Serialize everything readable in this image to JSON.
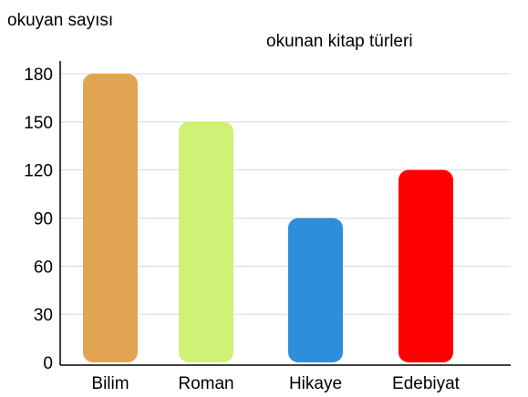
{
  "chart_data": {
    "type": "bar",
    "title": "okunan kitap türleri",
    "ylabel": "okuyan sayısı",
    "xlabel": "",
    "categories": [
      "Bilim",
      "Roman",
      "Hikaye",
      "Edebiyat"
    ],
    "values": [
      180,
      150,
      90,
      120
    ],
    "colors": [
      "#E2A452",
      "#CEF176",
      "#2F8ED9",
      "#FF0000"
    ],
    "ylim": [
      0,
      180
    ],
    "yticks": [
      0,
      30,
      60,
      90,
      120,
      150,
      180
    ],
    "grid": true,
    "legend": "none"
  }
}
